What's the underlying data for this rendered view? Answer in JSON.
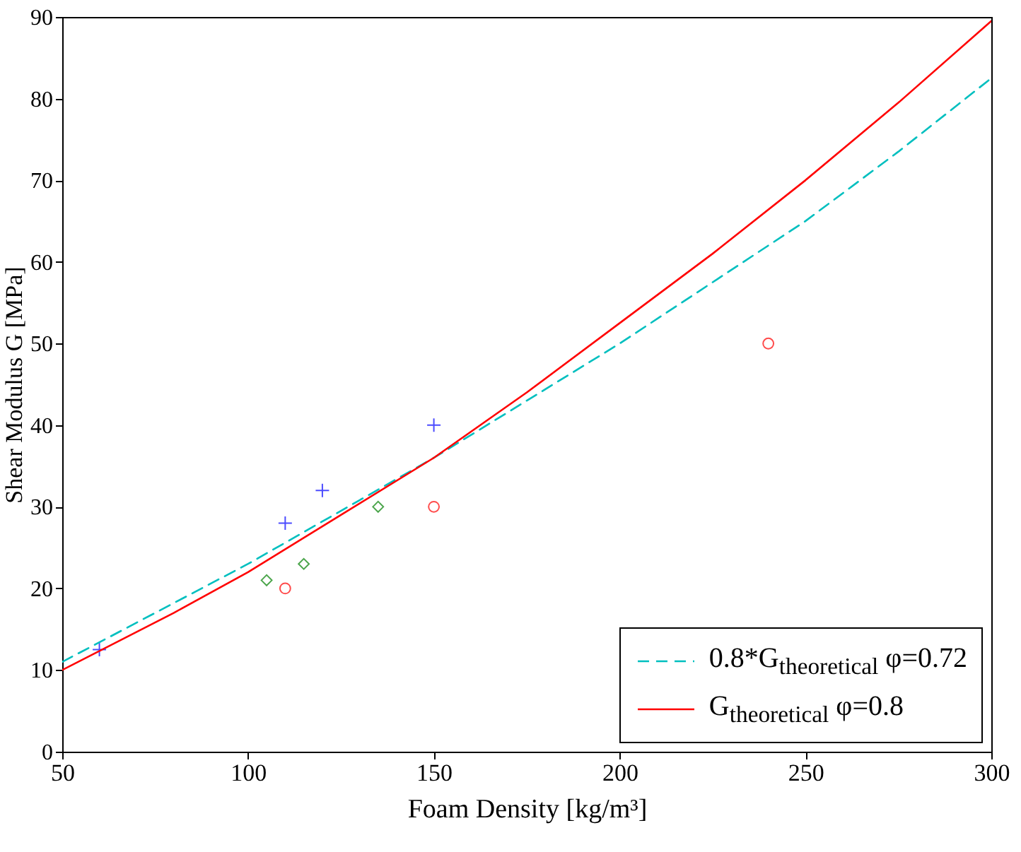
{
  "chart_data": {
    "type": "scatter",
    "xlabel": "Foam Density [kg/m³]",
    "ylabel": "Shear Modulus G [MPa]",
    "xlim": [
      50,
      300
    ],
    "ylim": [
      0,
      90
    ],
    "xticks": [
      50,
      100,
      150,
      200,
      250,
      300
    ],
    "yticks": [
      0,
      10,
      20,
      30,
      40,
      50,
      60,
      70,
      80,
      90
    ],
    "grid": false,
    "legend": "bottom right",
    "series": [
      {
        "color": "#0000ff",
        "marker": "cross",
        "x": [
          60,
          110,
          120,
          150
        ],
        "values": [
          12.5,
          28,
          32,
          40
        ]
      },
      {
        "color": "#008000",
        "marker": "diamond",
        "x": [
          105,
          115,
          135
        ],
        "values": [
          21,
          23,
          30
        ]
      },
      {
        "color": "#ff0000",
        "marker": "circle",
        "x": [
          110,
          150,
          240
        ],
        "values": [
          20,
          30,
          50
        ]
      },
      {
        "type": "line",
        "name": "0.8*G$_{theoretical}$ φ=0.72",
        "color": "#00bfbf",
        "line_style": "dashed",
        "marker": "none",
        "x": [
          50,
          75,
          100,
          125,
          150,
          175,
          200,
          225,
          250,
          275,
          300
        ],
        "values": [
          11,
          17,
          23,
          29.5,
          36,
          43,
          50,
          57.5,
          65,
          73.5,
          82.5
        ]
      },
      {
        "type": "line",
        "name": "G$_{theoretical}$ φ=0.8",
        "color": "#ff0000",
        "line_style": "solid",
        "marker": "none",
        "x": [
          50,
          80,
          100,
          125,
          150,
          175,
          200,
          225,
          250,
          275,
          300
        ],
        "values": [
          10,
          17,
          22,
          29,
          36,
          44,
          52.5,
          61,
          70,
          79.5,
          89.5
        ]
      }
    ]
  }
}
